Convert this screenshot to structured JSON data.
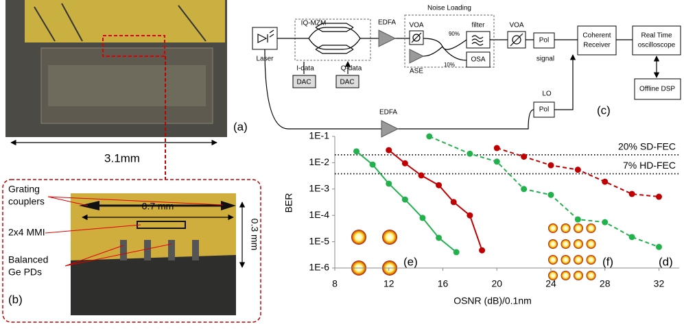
{
  "panel_a": {
    "label": "(a)",
    "scale": "3.1mm"
  },
  "panel_b": {
    "label": "(b)",
    "width": "0.7 mm",
    "height": "0.3 mm",
    "callouts": [
      [
        "Grating",
        "couplers"
      ],
      [
        "2x4 MMI"
      ],
      [
        "Balanced",
        "Ge PDs"
      ]
    ]
  },
  "panel_c": {
    "label": "(c)",
    "laser": "Laser",
    "modulator": "IQ-MZM",
    "i_data": "I-data",
    "q_data": "Q-data",
    "dacs": [
      "DAC",
      "DAC"
    ],
    "amplifiers": [
      "EDFA",
      "EDFA"
    ],
    "noise_loading": "Noise Loading",
    "voas": [
      "VOA",
      "VOA"
    ],
    "ase": "ASE",
    "split": [
      "90%",
      "10%"
    ],
    "filter": "filter",
    "osa": "OSA",
    "polarizers": [
      "Pol",
      "Pol"
    ],
    "signal": "signal",
    "lo": "LO",
    "receiver": [
      "Coherent",
      "Receiver"
    ],
    "scope": [
      "Real Time",
      "oscilloscope"
    ],
    "dsp": "Offline DSP"
  },
  "chart_data": {
    "type": "line",
    "x_label": "OSNR (dB)/0.1nm",
    "y_label": "BER",
    "xlim": [
      8,
      33.5
    ],
    "xticks": [
      8,
      12,
      16,
      20,
      24,
      28,
      32
    ],
    "ylim": [
      1e-06,
      0.1
    ],
    "yscale": "log",
    "yticks": [
      {
        "value": 0.1,
        "label": "1E-1"
      },
      {
        "value": 0.01,
        "label": "1E-2"
      },
      {
        "value": 0.001,
        "label": "1E-3"
      },
      {
        "value": 0.0001,
        "label": "1E-4"
      },
      {
        "value": 1e-05,
        "label": "1E-5"
      },
      {
        "value": 1e-06,
        "label": "1E-6"
      }
    ],
    "grid": false,
    "hlines": [
      {
        "value": 0.02,
        "label": "20% SD-FEC"
      },
      {
        "value": 0.0038,
        "label": "7% HD-FEC"
      }
    ],
    "series": [
      {
        "color": "#22b14c",
        "dashed": false,
        "x": [
          9.6,
          10.8,
          12,
          13.2,
          14.5,
          15.7,
          17
        ],
        "values": [
          0.027,
          0.0085,
          0.0016,
          0.0004,
          8e-05,
          1.4e-05,
          4e-06
        ]
      },
      {
        "color": "#c00000",
        "dashed": false,
        "x": [
          12,
          13.2,
          14.4,
          15.7,
          16.8,
          18,
          18.9
        ],
        "values": [
          0.03,
          0.0095,
          0.0033,
          0.0014,
          0.00032,
          0.0001,
          4.7e-06
        ]
      },
      {
        "color": "#22b14c",
        "dashed": true,
        "x": [
          15,
          18,
          20,
          22,
          24,
          26,
          28,
          30,
          32
        ],
        "values": [
          0.1,
          0.022,
          0.011,
          0.001,
          0.0006,
          7e-05,
          5.5e-05,
          1.5e-05,
          6.3e-06
        ]
      },
      {
        "color": "#c00000",
        "dashed": true,
        "x": [
          20,
          22,
          24,
          26,
          28,
          30,
          32
        ],
        "values": [
          0.036,
          0.017,
          0.008,
          0.0054,
          0.0019,
          0.00065,
          0.00051
        ]
      }
    ],
    "annotations": [
      "(d)",
      "(e)",
      "(f)"
    ]
  }
}
